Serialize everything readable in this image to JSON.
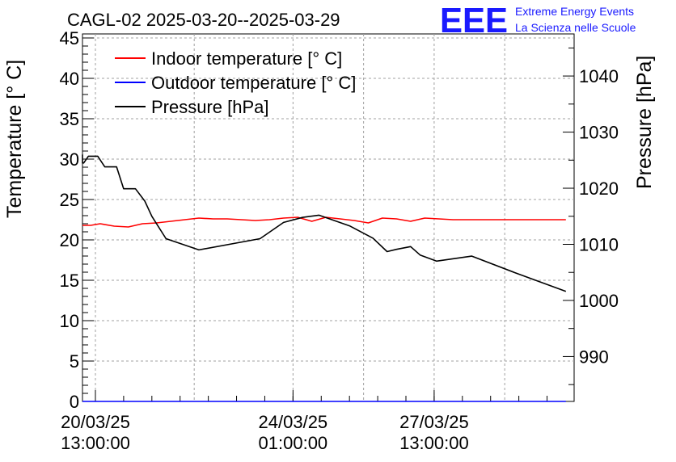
{
  "chart_data": {
    "type": "line",
    "title": "CAGL-02 2025-03-20--2025-03-29",
    "logo": {
      "letters": "EEE",
      "line1": "Extreme Energy Events",
      "line2": "La Scienza nelle Scuole"
    },
    "ylabel": "Temperature [° C]",
    "y2label": "Pressure [hPa]",
    "ylim": [
      0,
      45.5
    ],
    "y2lim": [
      982,
      1047.5
    ],
    "yticks": [
      0,
      5,
      10,
      15,
      20,
      25,
      30,
      35,
      40,
      45
    ],
    "y2ticks": [
      990,
      1000,
      1010,
      1020,
      1030,
      1040
    ],
    "xlim_hours": [
      -5.5,
      203.5
    ],
    "xticks": [
      {
        "hours": 0,
        "date": "20/03/25",
        "time": "13:00:00"
      },
      {
        "hours": 84,
        "date": "24/03/25",
        "time": "01:00:00"
      },
      {
        "hours": 144,
        "date": "27/03/25",
        "time": "13:00:00"
      }
    ],
    "grid": true,
    "legend_position": "top-left",
    "series": [
      {
        "name": "Indoor temperature [° C]",
        "color": "#ff0000",
        "axis": "left",
        "x_hours": [
          -10,
          -2,
          2,
          8,
          14,
          20,
          26,
          32,
          38,
          44,
          50,
          56,
          62,
          68,
          74,
          80,
          86,
          92,
          98,
          104,
          110,
          116,
          122,
          128,
          134,
          140,
          146,
          152,
          158,
          164,
          170,
          176,
          182,
          188,
          194,
          200
        ],
        "values": [
          21.8,
          21.8,
          22.0,
          21.7,
          21.6,
          22.0,
          22.1,
          22.3,
          22.5,
          22.7,
          22.6,
          22.6,
          22.5,
          22.4,
          22.5,
          22.7,
          22.8,
          22.3,
          22.8,
          22.6,
          22.4,
          22.1,
          22.7,
          22.6,
          22.3,
          22.7,
          22.6,
          22.5,
          22.5,
          22.5,
          22.5,
          22.5,
          22.5,
          22.5,
          22.5,
          22.5
        ],
        "x_start": -10,
        "x_step": 6
      },
      {
        "name": "Outdoor temperature [° C]",
        "color": "#0000ff",
        "axis": "left",
        "x_hours": [
          -10,
          200
        ],
        "values": [
          0,
          0
        ]
      },
      {
        "name": "Pressure [hPa]",
        "color": "#000000",
        "axis": "right",
        "x_hours": [
          -10,
          -8,
          -5,
          -3,
          1,
          4,
          9,
          12,
          17,
          21,
          24,
          30,
          44,
          70,
          80,
          88,
          95,
          108,
          118,
          124,
          128,
          134,
          138,
          145,
          160,
          178,
          200
        ],
        "values": [
          1026,
          1024.5,
          1024.5,
          1025.7,
          1025.7,
          1023.8,
          1023.8,
          1019.9,
          1019.9,
          1017.7,
          1015,
          1011,
          1009,
          1011,
          1013.9,
          1014.8,
          1015.2,
          1013.3,
          1011.1,
          1008.7,
          1009.1,
          1009.6,
          1008.1,
          1007,
          1007.9,
          1005,
          1001.6
        ]
      }
    ]
  }
}
